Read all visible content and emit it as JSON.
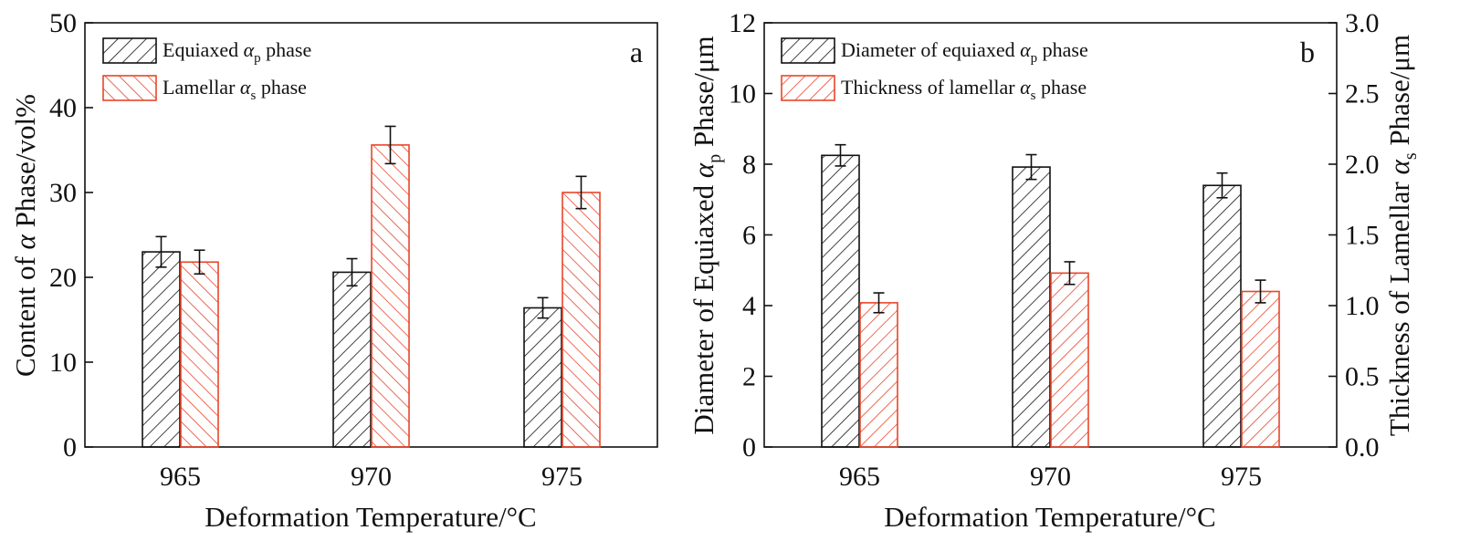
{
  "chart_data": [
    {
      "type": "bar",
      "panel_label": "a",
      "categories": [
        "965",
        "970",
        "975"
      ],
      "xlabel": "Deformation Temperature/°C",
      "ylabel": {
        "pre": "Content of ",
        "greek": "α",
        "post": " Phase/vol%"
      },
      "ylim": [
        0,
        50
      ],
      "yticks": [
        0,
        10,
        20,
        30,
        40,
        50
      ],
      "legend_position": "top-left",
      "series": [
        {
          "name": {
            "pre": "Equiaxed ",
            "greek": "α",
            "sub": "p",
            "post": " phase"
          },
          "color": "#111111",
          "values": [
            23.0,
            20.6,
            16.4
          ],
          "errors": [
            1.8,
            1.6,
            1.2
          ]
        },
        {
          "name": {
            "pre": "Lamellar ",
            "greek": "α",
            "sub": "s",
            "post": " phase"
          },
          "color": "#e8462a",
          "values": [
            21.8,
            35.6,
            30.0
          ],
          "errors": [
            1.4,
            2.2,
            1.9
          ]
        }
      ]
    },
    {
      "type": "bar",
      "panel_label": "b",
      "categories": [
        "965",
        "970",
        "975"
      ],
      "xlabel": "Deformation Temperature/°C",
      "ylabel": {
        "pre": "Diameter of Equiaxed ",
        "greek": "α",
        "sub": "p",
        "post": " Phase/μm"
      },
      "ylim": [
        0,
        12
      ],
      "yticks": [
        0,
        2,
        4,
        6,
        8,
        10,
        12
      ],
      "y2label": {
        "pre": "Thickness of Lamellar ",
        "greek": "α",
        "sub": "s",
        "post": " Phase/μm"
      },
      "y2lim": [
        0.0,
        3.0
      ],
      "y2ticks": [
        "0.0",
        "0.5",
        "1.0",
        "1.5",
        "2.0",
        "2.5",
        "3.0"
      ],
      "legend_position": "top-left",
      "series": [
        {
          "name": {
            "pre": "Diameter of equiaxed ",
            "greek": "α",
            "sub": "p",
            "post": " phase"
          },
          "color": "#111111",
          "axis": "left",
          "values": [
            8.25,
            7.92,
            7.4
          ],
          "errors": [
            0.3,
            0.35,
            0.35
          ]
        },
        {
          "name": {
            "pre": "Thickness of lamellar ",
            "greek": "α",
            "sub": "s",
            "post": " phase"
          },
          "color": "#e8462a",
          "axis": "right",
          "values": [
            1.02,
            1.23,
            1.1
          ],
          "errors": [
            0.07,
            0.08,
            0.08
          ]
        }
      ]
    }
  ]
}
